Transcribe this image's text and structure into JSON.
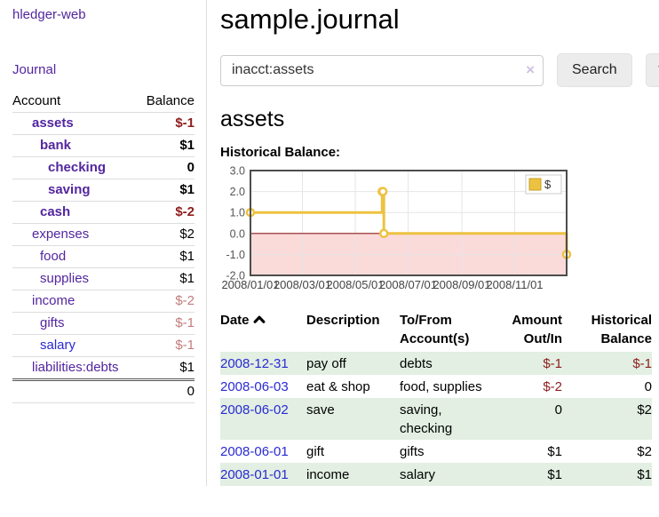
{
  "colors": {
    "purple": "#53269f",
    "blue": "#2a2ad4",
    "neg_strong": "#8f1d1d",
    "neg_soft": "#c27d7d",
    "stripe": "#e2efe2",
    "accent_gold": "#edc240"
  },
  "sidebar": {
    "brand": "hledger-web",
    "nav_journal": "Journal",
    "table_header": {
      "account": "Account",
      "balance": "Balance"
    },
    "accounts": [
      {
        "name": "assets",
        "balance": "$-1",
        "depth": 1,
        "bold": true
      },
      {
        "name": "bank",
        "balance": "$1",
        "depth": 2,
        "bold": true
      },
      {
        "name": "checking",
        "balance": "0",
        "depth": 3,
        "bold": true
      },
      {
        "name": "saving",
        "balance": "$1",
        "depth": 3,
        "bold": true
      },
      {
        "name": "cash",
        "balance": "$-2",
        "depth": 2,
        "bold": true
      },
      {
        "name": "expenses",
        "balance": "$2",
        "depth": 1,
        "bold": false
      },
      {
        "name": "food",
        "balance": "$1",
        "depth": 2,
        "bold": false
      },
      {
        "name": "supplies",
        "balance": "$1",
        "depth": 2,
        "bold": false
      },
      {
        "name": "income",
        "balance": "$-2",
        "depth": 1,
        "bold": false
      },
      {
        "name": "gifts",
        "balance": "$-1",
        "depth": 2,
        "bold": false
      },
      {
        "name": "salary",
        "balance": "$-1",
        "depth": 2,
        "bold": false,
        "blue_link": true
      },
      {
        "name": "liabilities:debts",
        "balance": "$1",
        "depth": 1,
        "bold": false
      }
    ],
    "total": "0"
  },
  "main": {
    "title": "sample.journal",
    "search": {
      "value": "inacct:assets",
      "clear_glyph": "×",
      "search_button": "Search",
      "help_button": "?"
    },
    "account_heading": "assets",
    "chart_heading": "Historical Balance:"
  },
  "chart_data": {
    "type": "line",
    "step": true,
    "title": "Historical Balance:",
    "legend": [
      {
        "name": "$",
        "color": "#edc240"
      }
    ],
    "x_range": [
      "2008-01-01",
      "2008-12-31"
    ],
    "ylim": [
      -2,
      3
    ],
    "y_ticks": [
      {
        "v": 3,
        "label": "3.0"
      },
      {
        "v": 2,
        "label": "2.0"
      },
      {
        "v": 1,
        "label": "1.0"
      },
      {
        "v": 0,
        "label": "0.0"
      },
      {
        "v": -1,
        "label": "-1.0"
      },
      {
        "v": -2,
        "label": "-2.0"
      }
    ],
    "x_ticks": [
      {
        "date": "2008-01-01",
        "label": "2008/01/01"
      },
      {
        "date": "2008-03-01",
        "label": "2008/03/01"
      },
      {
        "date": "2008-05-01",
        "label": "2008/05/01"
      },
      {
        "date": "2008-07-01",
        "label": "2008/07/01"
      },
      {
        "date": "2008-09-01",
        "label": "2008/09/01"
      },
      {
        "date": "2008-11-01",
        "label": "2008/11/01"
      }
    ],
    "series": [
      {
        "name": "$",
        "color": "#edc240",
        "marker_fill": "#ffffff",
        "points": [
          [
            "2008-01-01",
            1
          ],
          [
            "2008-06-01",
            2
          ],
          [
            "2008-06-02",
            2
          ],
          [
            "2008-06-03",
            0
          ],
          [
            "2008-12-31",
            -1
          ]
        ]
      }
    ],
    "negative_region_fill": "#fbdada",
    "zero_line_color": "#8f1d1d",
    "grid_color": "#e6e6e6",
    "border_color": "#4d4d4d"
  },
  "register": {
    "columns": [
      {
        "label": "Date",
        "align": "left",
        "sorted": "asc"
      },
      {
        "label": "Description",
        "align": "left"
      },
      {
        "label": "To/From Account(s)",
        "align": "left"
      },
      {
        "label": "Amount Out/In",
        "align": "right"
      },
      {
        "label": "Historical Balance",
        "align": "right"
      }
    ],
    "rows": [
      {
        "date": "2008-12-31",
        "description": "pay off",
        "accounts": "debts",
        "amount": "$-1",
        "balance": "$-1"
      },
      {
        "date": "2008-06-03",
        "description": "eat & shop",
        "accounts": "food, supplies",
        "amount": "$-2",
        "balance": "0"
      },
      {
        "date": "2008-06-02",
        "description": "save",
        "accounts": "saving, checking",
        "amount": "0",
        "balance": "$2"
      },
      {
        "date": "2008-06-01",
        "description": "gift",
        "accounts": "gifts",
        "amount": "$1",
        "balance": "$2"
      },
      {
        "date": "2008-01-01",
        "description": "income",
        "accounts": "salary",
        "amount": "$1",
        "balance": "$1"
      }
    ]
  }
}
